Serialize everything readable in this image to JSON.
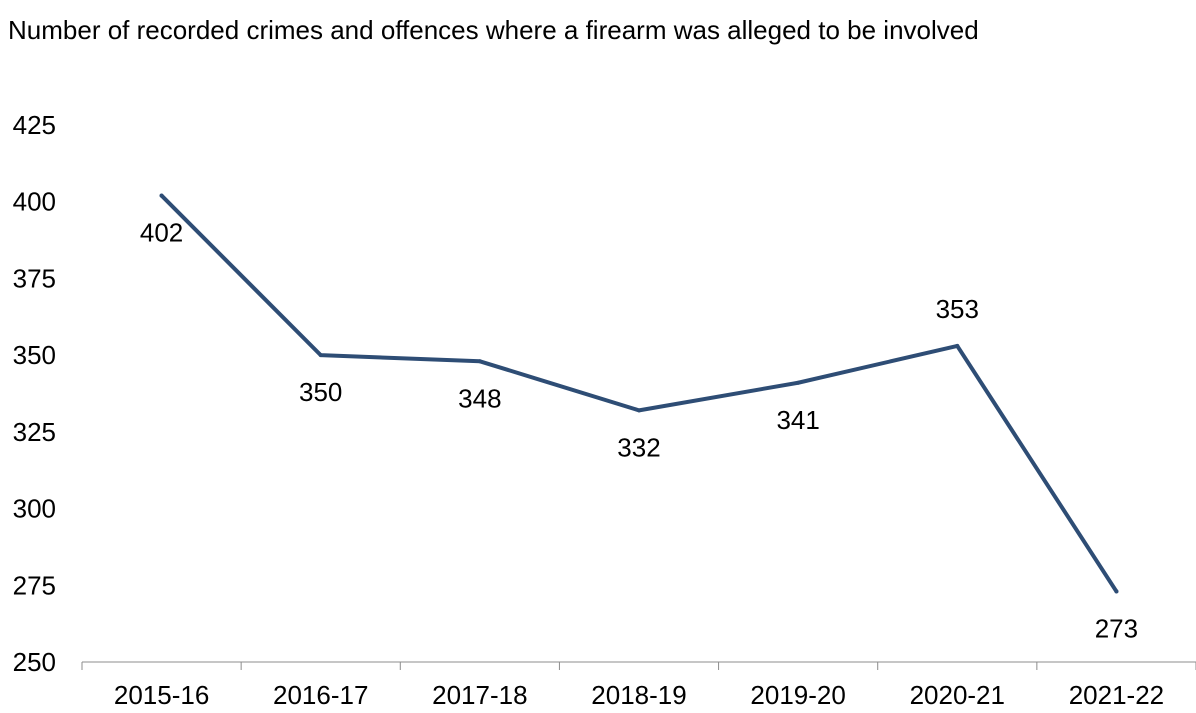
{
  "chart_data": {
    "type": "line",
    "title": "Number of recorded crimes and offences where a firearm was alleged to be involved",
    "categories": [
      "2015-16",
      "2016-17",
      "2017-18",
      "2018-19",
      "2019-20",
      "2020-21",
      "2021-22"
    ],
    "series": [
      {
        "values": [
          402,
          350,
          348,
          332,
          341,
          353,
          273
        ],
        "color": "#2e4d75"
      }
    ],
    "data_labels": [
      "402",
      "350",
      "348",
      "332",
      "341",
      "353",
      "273"
    ],
    "ylim": [
      250,
      425
    ],
    "yticks": [
      250,
      275,
      300,
      325,
      350,
      375,
      400,
      425
    ],
    "ytick_labels": [
      "250",
      "275",
      "300",
      "325",
      "350",
      "375",
      "400",
      "425"
    ],
    "xlabel": "",
    "ylabel": "",
    "grid": false,
    "legend": "none"
  }
}
